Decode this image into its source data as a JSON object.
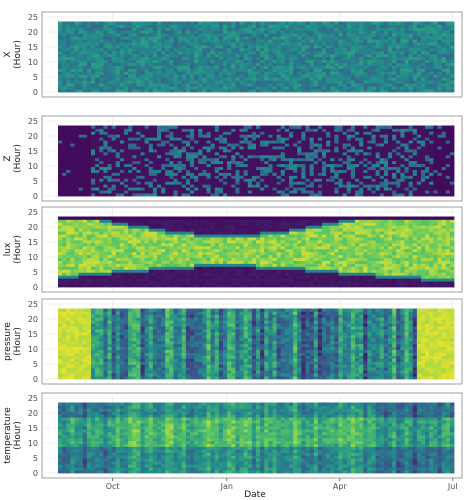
{
  "chart_data": {
    "type": "heatmap",
    "xlabel": "Date",
    "x_ticks": [
      "Oct",
      "Jan",
      "Apr",
      "Jul"
    ],
    "xlim": [
      "2019-08-18",
      "2020-07-02"
    ],
    "x_tick_dates": [
      "2019-10-01",
      "2020-01-01",
      "2020-04-01",
      "2020-07-01"
    ],
    "colormap": [
      "#440154",
      "#3b528b",
      "#21918c",
      "#5ec962",
      "#fde725"
    ],
    "grid": true,
    "panels": [
      {
        "variable": "X",
        "ylabel_lines": [
          "X",
          "(Hour)"
        ],
        "ylim": [
          0,
          23
        ],
        "y_ticks": [
          0,
          5,
          10,
          15,
          20,
          25
        ],
        "pattern": "uniform teal-green noise across all dates and hours"
      },
      {
        "variable": "Z",
        "ylabel_lines": [
          "Z",
          "(Hour)"
        ],
        "ylim": [
          0,
          23
        ],
        "y_ticks": [
          0,
          5,
          10,
          15,
          20,
          25
        ],
        "pattern": "mostly dark purple with scattered teal; darkest before mid-September and after mid-June"
      },
      {
        "variable": "lux",
        "ylabel_lines": [
          "lux",
          "(Hour)"
        ],
        "ylim": [
          0,
          23
        ],
        "y_ticks": [
          0,
          5,
          10,
          15,
          20,
          25
        ],
        "pattern": "bright yellow daylight band, narrowest in mid-winter (about 07-16 h), widest in summer (about 05-21 h); dark purple at night"
      },
      {
        "variable": "pressure",
        "ylabel_lines": [
          "pressure",
          "(Hour)"
        ],
        "ylim": [
          0,
          23
        ],
        "y_ticks": [
          0,
          5,
          10,
          15,
          20,
          25
        ],
        "pattern": "bright yellow before mid-September and after early June; mixed green/teal with vertical streaks in between"
      },
      {
        "variable": "temperature",
        "ylabel_lines": [
          "temperature",
          "(Hour)"
        ],
        "ylim": [
          0,
          23
        ],
        "y_ticks": [
          0,
          5,
          10,
          15,
          20,
          25
        ],
        "pattern": "teal/green with warmer yellow-green daytime band, brightest October through April"
      }
    ]
  }
}
